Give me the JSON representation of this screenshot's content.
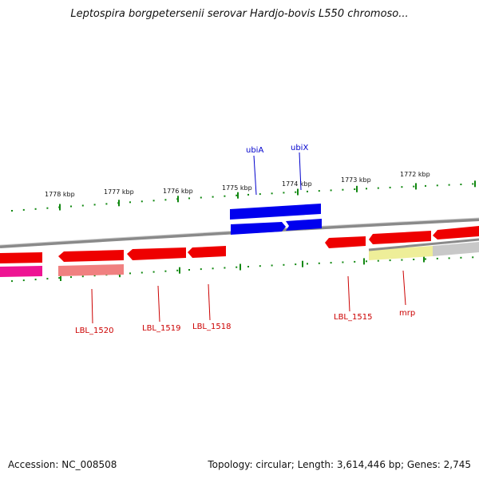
{
  "title": "Leptospira borgpetersenii serovar Hardjo-bovis L550 chromoso...",
  "footer": {
    "accession": "Accession: NC_008508",
    "topology": "Topology: circular; Length: 3,614,446 bp; Genes: 2,745"
  },
  "ruler": {
    "labels": [
      "1778 kbp",
      "1777 kbp",
      "1776 kbp",
      "1775 kbp",
      "1774 kbp",
      "1773 kbp",
      "1772 kbp"
    ]
  },
  "genes": {
    "labelled": [
      {
        "name": "ubiA",
        "color": "#0000cc"
      },
      {
        "name": "ubiX",
        "color": "#0000cc"
      },
      {
        "name": "LBL_1520",
        "color": "#cc0000"
      },
      {
        "name": "LBL_1519",
        "color": "#cc0000"
      },
      {
        "name": "LBL_1518",
        "color": "#cc0000"
      },
      {
        "name": "LBL_1515",
        "color": "#cc0000"
      },
      {
        "name": "mrp",
        "color": "#cc0000"
      }
    ]
  },
  "colors": {
    "cds": "#ee0000",
    "rna": "#0000ee",
    "backbone": "#888888",
    "tick": "#118811",
    "pink": "#ee1493",
    "salmon": "#f08080",
    "yellow": "#eeee99",
    "gray_feature": "#c0c0c0"
  }
}
